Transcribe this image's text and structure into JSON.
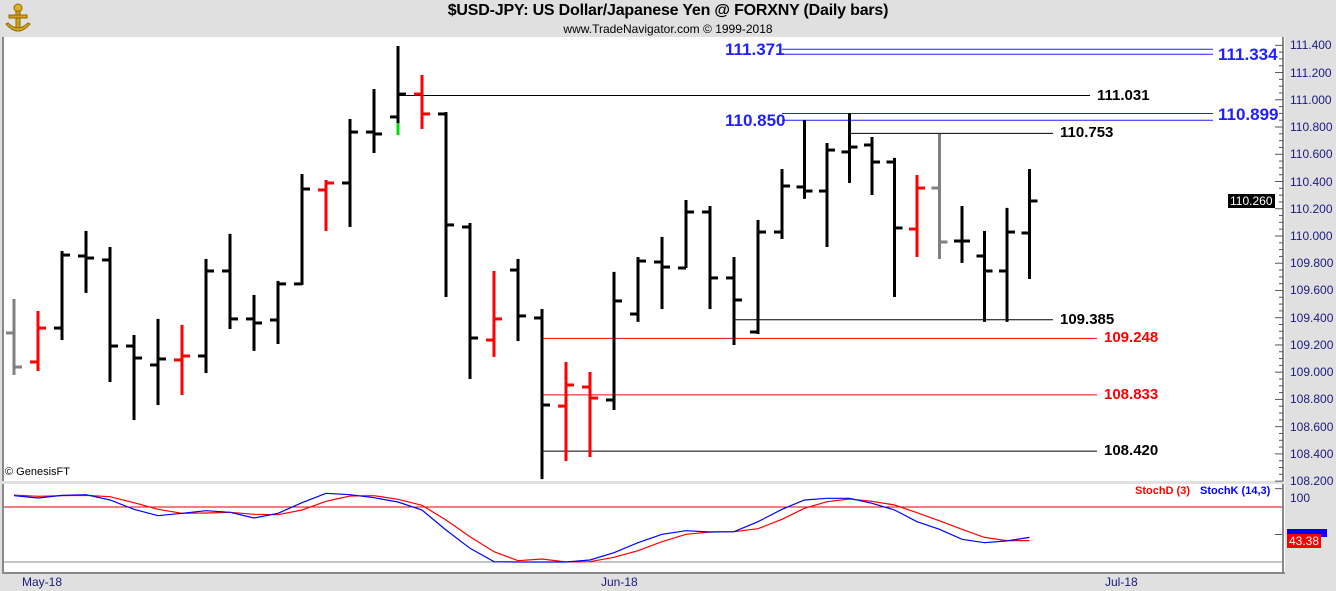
{
  "header": {
    "title": "$USD-JPY:  US Dollar/Japanese Yen @ FORXNY  (Daily bars)",
    "subtitle": "www.TradeNavigator.com © 1999-2018"
  },
  "copyright": "© GenesisFT",
  "colors": {
    "up": "#000000",
    "down": "#ff0000",
    "neutral": "#808080",
    "highlight": "#00dd00",
    "level_blue": "#1f1fff",
    "level_red": "#ff0000",
    "level_black": "#000000",
    "stoch_k": "#0000ff",
    "stoch_d": "#ff0000"
  },
  "price_axis": {
    "labels": [
      "111.400",
      "111.200",
      "111.000",
      "110.800",
      "110.600",
      "110.400",
      "110.200",
      "110.000",
      "109.800",
      "109.600",
      "109.400",
      "109.200",
      "109.000",
      "108.800",
      "108.600",
      "108.400",
      "108.200"
    ],
    "last_price": "110.260"
  },
  "date_axis": {
    "labels": [
      "May-18",
      "Jun-18",
      "Jul-18"
    ]
  },
  "chart_data": [
    {
      "type": "ohlc",
      "title": "$USD-JPY:  US Dollar/Japanese Yen @ FORXNY  (Daily bars)",
      "ylim": [
        108.2,
        111.4
      ],
      "bar_fields": [
        "open",
        "high",
        "low",
        "close",
        "color"
      ],
      "bars": [
        [
          109.288,
          109.537,
          108.979,
          109.038,
          "neutral"
        ],
        [
          109.075,
          109.449,
          109.009,
          109.324,
          "down"
        ],
        [
          109.324,
          109.89,
          109.236,
          109.86,
          "up"
        ],
        [
          109.853,
          110.037,
          109.582,
          109.838,
          "up"
        ],
        [
          109.824,
          109.919,
          108.928,
          109.192,
          "up"
        ],
        [
          109.192,
          109.273,
          108.649,
          109.104,
          "up"
        ],
        [
          109.053,
          109.391,
          108.759,
          109.097,
          "up"
        ],
        [
          109.09,
          109.347,
          108.832,
          109.119,
          "down"
        ],
        [
          109.119,
          109.831,
          108.994,
          109.743,
          "up"
        ],
        [
          109.743,
          110.015,
          109.317,
          109.391,
          "up"
        ],
        [
          109.391,
          109.567,
          109.156,
          109.361,
          "up"
        ],
        [
          109.383,
          109.67,
          109.207,
          109.648,
          "up"
        ],
        [
          109.648,
          110.455,
          109.64,
          110.345,
          "up"
        ],
        [
          110.338,
          110.411,
          110.037,
          110.389,
          "down"
        ],
        [
          110.389,
          110.859,
          110.066,
          110.763,
          "up"
        ],
        [
          110.763,
          111.079,
          110.609,
          110.749,
          "up"
        ],
        [
          110.874,
          111.395,
          110.741,
          111.042,
          "up"
        ],
        [
          111.042,
          111.182,
          110.786,
          110.896,
          "down"
        ],
        [
          110.896,
          110.91,
          109.552,
          110.081,
          "up"
        ],
        [
          110.066,
          110.095,
          108.95,
          109.251,
          "up"
        ],
        [
          109.236,
          109.743,
          109.112,
          109.391,
          "down"
        ],
        [
          109.75,
          109.831,
          109.229,
          109.413,
          "up"
        ],
        [
          109.398,
          109.464,
          108.215,
          108.759,
          "up"
        ],
        [
          108.751,
          109.075,
          108.347,
          108.906,
          "down"
        ],
        [
          108.891,
          109.001,
          108.377,
          108.81,
          "down"
        ],
        [
          108.796,
          109.736,
          108.722,
          109.523,
          "up"
        ],
        [
          109.427,
          109.846,
          109.369,
          109.816,
          "up"
        ],
        [
          109.809,
          109.993,
          109.464,
          109.772,
          "up"
        ],
        [
          109.765,
          110.264,
          109.765,
          110.176,
          "up"
        ],
        [
          110.176,
          110.22,
          109.464,
          109.692,
          "up"
        ],
        [
          109.692,
          109.846,
          109.2,
          109.53,
          "up"
        ],
        [
          109.295,
          110.117,
          109.28,
          110.029,
          "up"
        ],
        [
          110.029,
          110.492,
          109.978,
          110.367,
          "up"
        ],
        [
          110.36,
          110.852,
          110.272,
          110.33,
          "up"
        ],
        [
          110.33,
          110.683,
          109.919,
          110.631,
          "up"
        ],
        [
          110.617,
          110.903,
          110.389,
          110.653,
          "up"
        ],
        [
          110.668,
          110.727,
          110.301,
          110.543,
          "up"
        ],
        [
          110.543,
          110.573,
          109.552,
          110.059,
          "up"
        ],
        [
          110.051,
          110.448,
          109.846,
          110.352,
          "down"
        ],
        [
          110.352,
          110.749,
          109.831,
          109.956,
          "neutral"
        ],
        [
          109.963,
          110.22,
          109.802,
          109.963,
          "up"
        ],
        [
          109.853,
          110.037,
          109.369,
          109.743,
          "up"
        ],
        [
          109.743,
          110.206,
          109.369,
          110.029,
          "up"
        ],
        [
          110.022,
          110.492,
          109.684,
          110.257,
          "up"
        ]
      ],
      "highlight_low_bar": 16,
      "levels": [
        {
          "value": 111.371,
          "label": "111.371",
          "color": "blue",
          "from_bar": 32,
          "label_side": "left"
        },
        {
          "value": 111.334,
          "label": "111.334",
          "color": "blue",
          "from_bar": 32,
          "label_side": "right"
        },
        {
          "value": 111.031,
          "label": "111.031",
          "color": "black",
          "from_bar": 16,
          "label_side": "right"
        },
        {
          "value": 110.899,
          "label": "110.899",
          "color": "blue",
          "from_bar": 32,
          "label_side": "right"
        },
        {
          "value": 110.85,
          "label": "110.850",
          "color": "blue",
          "from_bar": 32,
          "label_side": "left"
        },
        {
          "value": 110.753,
          "label": "110.753",
          "color": "black",
          "from_bar": 35,
          "label_side": "right"
        },
        {
          "value": 109.385,
          "label": "109.385",
          "color": "black",
          "from_bar": 30,
          "label_side": "right"
        },
        {
          "value": 109.248,
          "label": "109.248",
          "color": "red",
          "from_bar": 22,
          "label_side": "right"
        },
        {
          "value": 108.833,
          "label": "108.833",
          "color": "red",
          "from_bar": 22,
          "label_side": "right"
        },
        {
          "value": 108.42,
          "label": "108.420",
          "color": "black",
          "from_bar": 22,
          "label_side": "right"
        }
      ]
    },
    {
      "type": "line",
      "ylim": [
        9,
        100
      ],
      "reference_lines": [
        80,
        20
      ],
      "axis_labels": [
        "100"
      ],
      "series": [
        {
          "name": "StochD (3)",
          "color": "red",
          "values": [
            93,
            91.7,
            92.3,
            92.7,
            91.2,
            84.7,
            77.5,
            73.1,
            73.5,
            74.2,
            72,
            71.6,
            76.7,
            86.2,
            92,
            92.3,
            88.4,
            81.8,
            65.8,
            47.6,
            31.3,
            21.4,
            23.3,
            20,
            20.4,
            25.1,
            32.3,
            42.2,
            50.2,
            52.7,
            53.1,
            56.3,
            66.6,
            78.6,
            85.8,
            88.7,
            86.2,
            82.2,
            73.8,
            65,
            55.7,
            46.9,
            43.2,
            43.38
          ]
        },
        {
          "name": "StochK (14,3)",
          "color": "blue",
          "values": [
            92.3,
            89.8,
            92.7,
            93.4,
            87.6,
            77.5,
            70.5,
            73.1,
            76,
            74.2,
            68,
            73.1,
            84.7,
            94.9,
            93.4,
            90.1,
            85.5,
            76.7,
            54.9,
            35,
            20.4,
            20,
            20,
            20,
            22.2,
            30.2,
            41.1,
            50.2,
            54.2,
            52.7,
            53.1,
            64,
            77.5,
            87.6,
            89.5,
            89.5,
            84,
            76.7,
            64,
            55.7,
            44.8,
            41.1,
            43,
            46.9
          ]
        }
      ],
      "last_value_d": "43.38"
    }
  ]
}
